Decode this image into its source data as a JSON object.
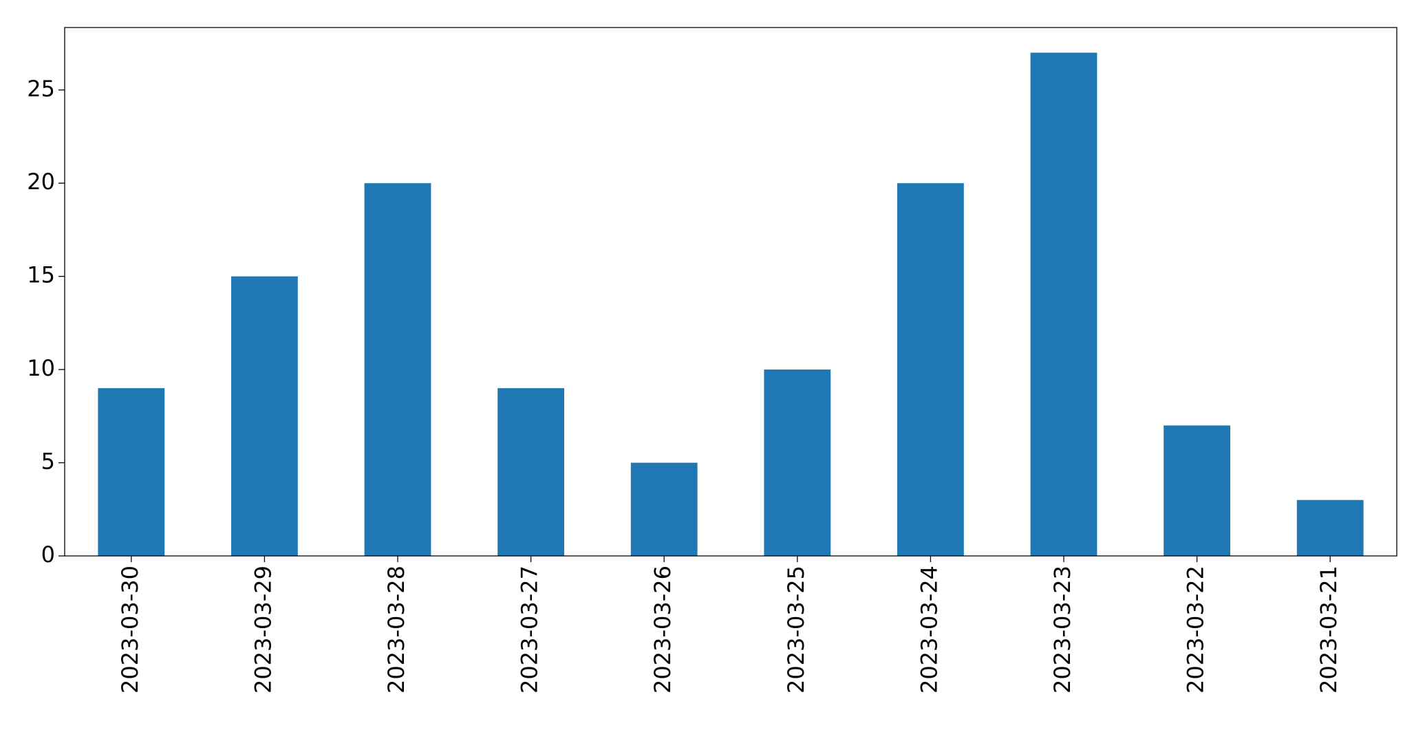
{
  "chart_data": {
    "type": "bar",
    "categories": [
      "2023-03-30",
      "2023-03-29",
      "2023-03-28",
      "2023-03-27",
      "2023-03-26",
      "2023-03-25",
      "2023-03-24",
      "2023-03-23",
      "2023-03-22",
      "2023-03-21"
    ],
    "values": [
      9,
      15,
      20,
      9,
      5,
      10,
      20,
      27,
      7,
      3
    ],
    "color": "#1f77b4",
    "ylim": [
      0,
      28.35
    ],
    "yticks": [
      0,
      5,
      10,
      15,
      20,
      25
    ],
    "grid": false
  }
}
